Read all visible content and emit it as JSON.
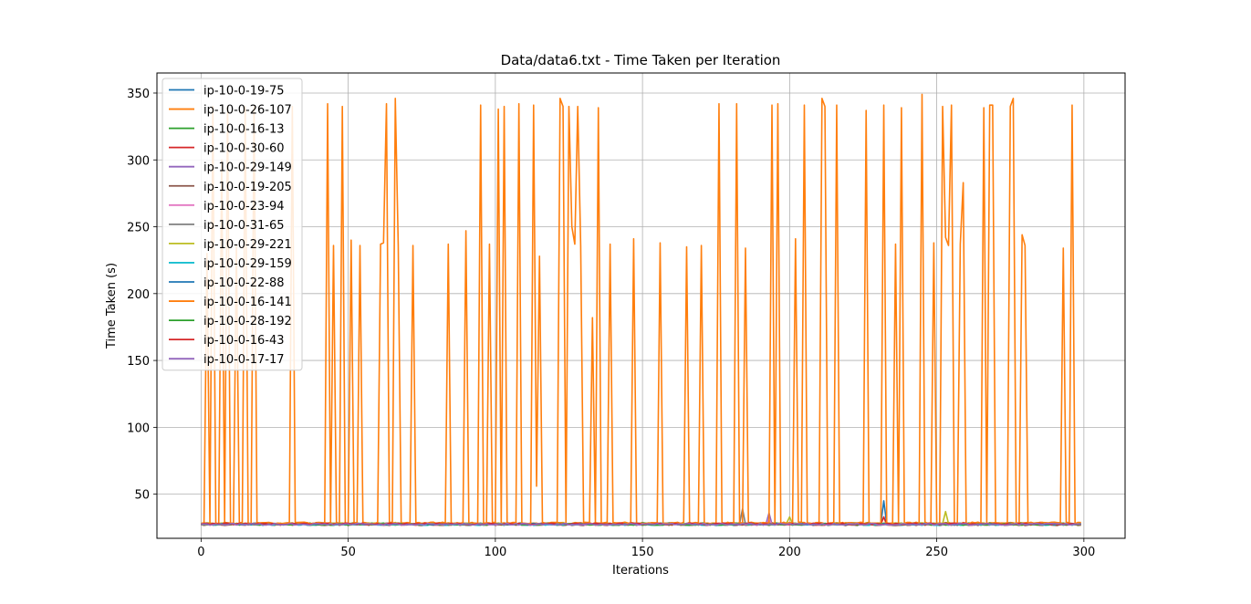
{
  "chart_data": {
    "type": "line",
    "title": "Data/data6.txt - Time Taken per Iteration",
    "xlabel": "Iterations",
    "ylabel": "Time Taken (s)",
    "xlim": [
      -15,
      314
    ],
    "ylim": [
      17,
      365
    ],
    "xticks": [
      0,
      50,
      100,
      150,
      200,
      250,
      300
    ],
    "yticks": [
      50,
      100,
      150,
      200,
      250,
      300,
      350
    ],
    "grid": true,
    "legend_position": "top-left",
    "baseline": 27.5,
    "x_count": 300,
    "series": [
      {
        "name": "ip-10-0-19-75",
        "color": "#1f77b4",
        "base": 27.6,
        "spikes": [
          [
            232,
            45
          ]
        ]
      },
      {
        "name": "ip-10-0-26-107",
        "color": "#ff7f0e",
        "base": 28.3,
        "spikes": []
      },
      {
        "name": "ip-10-0-16-13",
        "color": "#2ca02c",
        "base": 27.9,
        "spikes": []
      },
      {
        "name": "ip-10-0-30-60",
        "color": "#d62728",
        "base": 27.4,
        "spikes": [
          [
            232,
            33
          ]
        ]
      },
      {
        "name": "ip-10-0-29-149",
        "color": "#9467bd",
        "base": 27.7,
        "spikes": [
          [
            193,
            36
          ]
        ]
      },
      {
        "name": "ip-10-0-19-205",
        "color": "#8c564b",
        "base": 27.2,
        "spikes": []
      },
      {
        "name": "ip-10-0-23-94",
        "color": "#e377c2",
        "base": 27.5,
        "spikes": [
          [
            193,
            31
          ]
        ]
      },
      {
        "name": "ip-10-0-31-65",
        "color": "#7f7f7f",
        "base": 27.8,
        "spikes": [
          [
            184,
            39
          ]
        ]
      },
      {
        "name": "ip-10-0-29-221",
        "color": "#bcbd22",
        "base": 28.0,
        "spikes": [
          [
            200,
            33
          ],
          [
            253,
            37
          ]
        ]
      },
      {
        "name": "ip-10-0-29-159",
        "color": "#17becf",
        "base": 27.3,
        "spikes": []
      },
      {
        "name": "ip-10-0-22-88",
        "color": "#1f77b4",
        "base": 27.6,
        "spikes": []
      },
      {
        "name": "ip-10-0-16-141",
        "color": "#ff7f0e",
        "base": 28.5,
        "spikes": [
          [
            2,
            230
          ],
          [
            4,
            340
          ],
          [
            7,
            300
          ],
          [
            9,
            340
          ],
          [
            12,
            236
          ],
          [
            15,
            340
          ],
          [
            18,
            340
          ],
          [
            31,
            340
          ],
          [
            43,
            342
          ],
          [
            45,
            236
          ],
          [
            48,
            340
          ],
          [
            51,
            240
          ],
          [
            54,
            236
          ],
          [
            61,
            237
          ],
          [
            62,
            238
          ],
          [
            63,
            342
          ],
          [
            66,
            346
          ],
          [
            67,
            236
          ],
          [
            72,
            236
          ],
          [
            84,
            237
          ],
          [
            90,
            247
          ],
          [
            95,
            341
          ],
          [
            98,
            237
          ],
          [
            101,
            338
          ],
          [
            103,
            340
          ],
          [
            108,
            342
          ],
          [
            113,
            341
          ],
          [
            114,
            56
          ],
          [
            115,
            228
          ],
          [
            122,
            346
          ],
          [
            123,
            340
          ],
          [
            125,
            340
          ],
          [
            126,
            250
          ],
          [
            127,
            237
          ],
          [
            128,
            340
          ],
          [
            129,
            236
          ],
          [
            133,
            182
          ],
          [
            135,
            339
          ],
          [
            139,
            237
          ],
          [
            147,
            241
          ],
          [
            156,
            238
          ],
          [
            165,
            235
          ],
          [
            170,
            236
          ],
          [
            176,
            342
          ],
          [
            182,
            342
          ],
          [
            185,
            234
          ],
          [
            194,
            341
          ],
          [
            196,
            342
          ],
          [
            202,
            241
          ],
          [
            205,
            341
          ],
          [
            211,
            346
          ],
          [
            212,
            340
          ],
          [
            216,
            341
          ],
          [
            226,
            337
          ],
          [
            232,
            341
          ],
          [
            236,
            237
          ],
          [
            238,
            339
          ],
          [
            245,
            349
          ],
          [
            249,
            238
          ],
          [
            252,
            340
          ],
          [
            253,
            242
          ],
          [
            254,
            236
          ],
          [
            255,
            341
          ],
          [
            258,
            237
          ],
          [
            259,
            283
          ],
          [
            266,
            339
          ],
          [
            268,
            341
          ],
          [
            269,
            341
          ],
          [
            275,
            340
          ],
          [
            276,
            346
          ],
          [
            279,
            244
          ],
          [
            280,
            236
          ],
          [
            293,
            234
          ],
          [
            296,
            341
          ]
        ]
      },
      {
        "name": "ip-10-0-28-192",
        "color": "#2ca02c",
        "base": 27.4,
        "spikes": []
      },
      {
        "name": "ip-10-0-16-43",
        "color": "#d62728",
        "base": 27.8,
        "spikes": []
      },
      {
        "name": "ip-10-0-17-17",
        "color": "#9467bd",
        "base": 27.5,
        "spikes": []
      }
    ]
  }
}
